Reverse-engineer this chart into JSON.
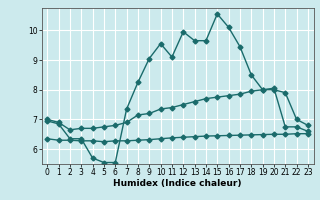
{
  "title": "",
  "xlabel": "Humidex (Indice chaleur)",
  "ylabel": "",
  "bg_color": "#cceaed",
  "grid_color": "#ffffff",
  "line_color": "#1a6b6b",
  "xlim": [
    -0.5,
    23.5
  ],
  "ylim": [
    5.5,
    10.75
  ],
  "yticks": [
    6,
    7,
    8,
    9,
    10
  ],
  "xticks": [
    0,
    1,
    2,
    3,
    4,
    5,
    6,
    7,
    8,
    9,
    10,
    11,
    12,
    13,
    14,
    15,
    16,
    17,
    18,
    19,
    20,
    21,
    22,
    23
  ],
  "line1_x": [
    0,
    1,
    2,
    3,
    4,
    5,
    6,
    7,
    8,
    9,
    10,
    11,
    12,
    13,
    14,
    15,
    16,
    17,
    18,
    19,
    20,
    21,
    22,
    23
  ],
  "line1_y": [
    6.95,
    6.85,
    6.35,
    6.35,
    5.7,
    5.55,
    5.55,
    7.35,
    8.25,
    9.05,
    9.55,
    9.1,
    9.95,
    9.65,
    9.65,
    10.55,
    10.1,
    9.45,
    8.5,
    8.0,
    8.0,
    7.9,
    7.0,
    6.8
  ],
  "line2_x": [
    0,
    1,
    2,
    3,
    4,
    5,
    6,
    7,
    8,
    9,
    10,
    11,
    12,
    13,
    14,
    15,
    16,
    17,
    18,
    19,
    20,
    21,
    22,
    23
  ],
  "line2_y": [
    6.35,
    6.3,
    6.3,
    6.28,
    6.28,
    6.25,
    6.28,
    6.28,
    6.3,
    6.32,
    6.35,
    6.38,
    6.4,
    6.42,
    6.44,
    6.45,
    6.46,
    6.47,
    6.48,
    6.49,
    6.5,
    6.5,
    6.52,
    6.52
  ],
  "line3_x": [
    0,
    1,
    2,
    3,
    4,
    5,
    6,
    7,
    8,
    9,
    10,
    11,
    12,
    13,
    14,
    15,
    16,
    17,
    18,
    19,
    20,
    21,
    22,
    23
  ],
  "line3_y": [
    7.0,
    6.9,
    6.65,
    6.7,
    6.7,
    6.75,
    6.8,
    6.9,
    7.15,
    7.2,
    7.35,
    7.4,
    7.5,
    7.6,
    7.7,
    7.75,
    7.8,
    7.85,
    7.95,
    8.0,
    8.05,
    6.75,
    6.75,
    6.6
  ],
  "marker_size": 2.5,
  "line_width": 1.0,
  "tick_fontsize": 5.5,
  "label_fontsize": 6.5
}
